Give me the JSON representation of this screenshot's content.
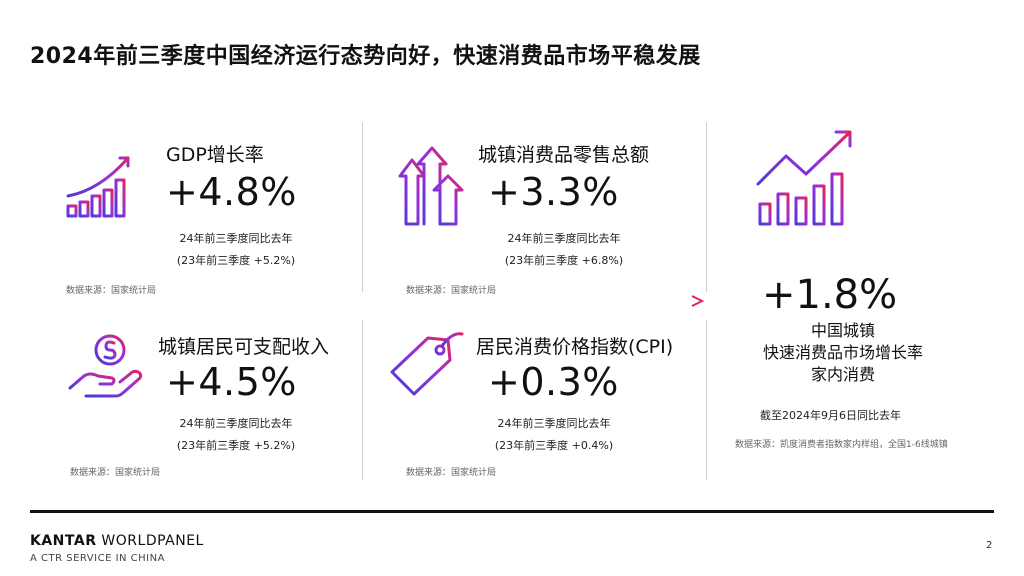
{
  "title": "2024年前三季度中国经济运行态势向好，快速消费品市场平稳发展",
  "cards": [
    {
      "title": "GDP增长率",
      "value": "+4.8%",
      "note1": "24年前三季度同比去年",
      "note2": "(23年前三季度 +5.2%)",
      "source": "数据来源：国家统计局",
      "icon": "bar-chart-growth-icon"
    },
    {
      "title": "城镇消费品零售总额",
      "value": "+3.3%",
      "note1": "24年前三季度同比去年",
      "note2": "(23年前三季度 +6.8%)",
      "source": "数据来源：国家统计局",
      "icon": "up-arrows-icon"
    },
    {
      "title": "城镇居民可支配收入",
      "value": "+4.5%",
      "note1": "24年前三季度同比去年",
      "note2": "(23年前三季度 +5.2%)",
      "source": "数据来源：国家统计局",
      "icon": "hand-coin-icon"
    },
    {
      "title": "居民消费价格指数(CPI)",
      "value": "+0.3%",
      "note1": "24年前三季度同比去年",
      "note2": "(23年前三季度  +0.4%)",
      "source": "数据来源：国家统计局",
      "icon": "price-tag-icon"
    }
  ],
  "highlight": {
    "value": "+1.8%",
    "line1": "中国城镇",
    "line2": "快速消费品市场增长率",
    "line3": "家内消费",
    "date_note": "截至2024年9月6日同比去年",
    "source": "数据来源：凯度消费者指数家内样组，全国1-6线城镇",
    "icon": "trend-bar-chart-icon"
  },
  "footer": {
    "brand_bold": "KANTAR",
    "brand_rest": " WORLDPANEL",
    "brand_sub": "A CTR SERVICE IN CHINA",
    "page": "2"
  },
  "colors": {
    "gradient_start": "#3a3ad6",
    "gradient_mid": "#8a2be2",
    "gradient_end": "#e0245e"
  }
}
